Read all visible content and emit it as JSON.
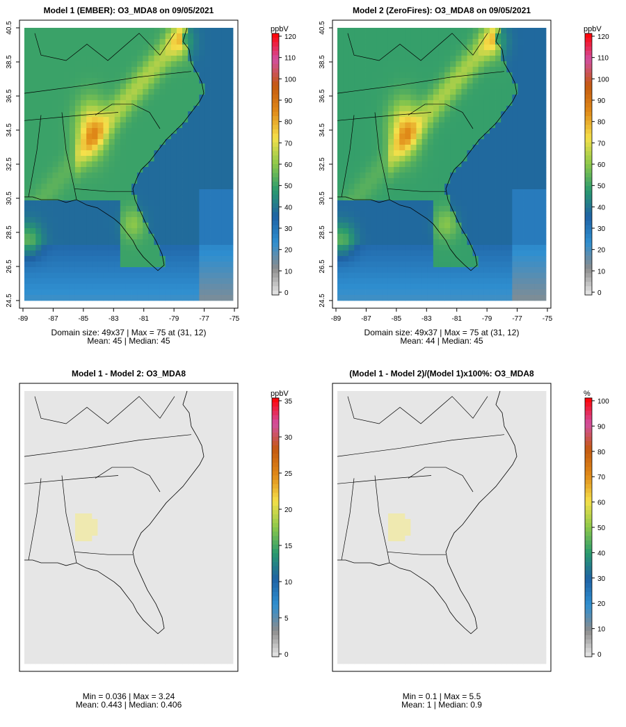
{
  "panels": [
    {
      "title": "Model 1 (EMBER): O3_MDA8 on 09/05/2021",
      "unit": "ppbV",
      "colorbar_ticks": [
        "120",
        "110",
        "100",
        "90",
        "80",
        "70",
        "60",
        "50",
        "40",
        "30",
        "20",
        "10",
        "0"
      ],
      "colorbar_range": [
        0,
        120
      ],
      "stats_line1": "Domain size: 49x37 | Max = 75 at (31, 12)",
      "stats_line2": "Mean: 45 |  Median: 45",
      "field": "ozone",
      "lat_ticks": [
        "40.5",
        "38.5",
        "36.5",
        "34.5",
        "32.5",
        "30.5",
        "28.5",
        "26.5",
        "24.5"
      ],
      "lon_ticks": [
        "-89",
        "-87",
        "-85",
        "-83",
        "-81",
        "-79",
        "-77",
        "-75"
      ]
    },
    {
      "title": "Model 2 (ZeroFires): O3_MDA8 on 09/05/2021",
      "unit": "ppbV",
      "colorbar_ticks": [
        "120",
        "110",
        "100",
        "90",
        "80",
        "70",
        "60",
        "50",
        "40",
        "30",
        "20",
        "10",
        "0"
      ],
      "colorbar_range": [
        0,
        120
      ],
      "stats_line1": "Domain size: 49x37 | Max = 75 at (31, 12)",
      "stats_line2": "Mean: 44 |  Median: 45",
      "field": "ozone",
      "lat_ticks": [
        "40.5",
        "38.5",
        "36.5",
        "34.5",
        "32.5",
        "30.5",
        "28.5",
        "26.5",
        "24.5"
      ],
      "lon_ticks": [
        "-89",
        "-87",
        "-85",
        "-83",
        "-81",
        "-79",
        "-77",
        "-75"
      ]
    },
    {
      "title": "Model 1 - Model 2: O3_MDA8",
      "unit": "ppbV",
      "colorbar_ticks": [
        "35",
        "30",
        "25",
        "20",
        "15",
        "10",
        "5",
        "0"
      ],
      "colorbar_range": [
        0,
        35
      ],
      "stats_line1": "Min = 0.036 | Max = 3.24",
      "stats_line2": "Mean: 0.443 |  Median: 0.406",
      "field": "diff"
    },
    {
      "title": "(Model 1 - Model 2)/(Model 1)x100%: O3_MDA8",
      "unit": "%",
      "colorbar_ticks": [
        "100",
        "90",
        "80",
        "70",
        "60",
        "50",
        "40",
        "30",
        "20",
        "10",
        "0"
      ],
      "colorbar_range": [
        0,
        100
      ],
      "stats_line1": "Min = 0.1 | Max = 5.5",
      "stats_line2": "Mean: 1 |  Median: 0.9",
      "field": "pct"
    }
  ],
  "colors": {
    "colorbar": [
      "#e8e8e8",
      "#8c8c8c",
      "#2f8fd0",
      "#1f62a4",
      "#2a9a6e",
      "#8cc84a",
      "#f5e04a",
      "#e08a18",
      "#c45a10",
      "#d14fa0",
      "#ff0000"
    ],
    "land_low": "#4aa8dd",
    "land_mid": "#2a9a6e",
    "land_high": "#f0e050",
    "ocean": "#2f7fbf",
    "diff_bg": "#e6e6e6",
    "diff_hot": "#efe9b0"
  }
}
